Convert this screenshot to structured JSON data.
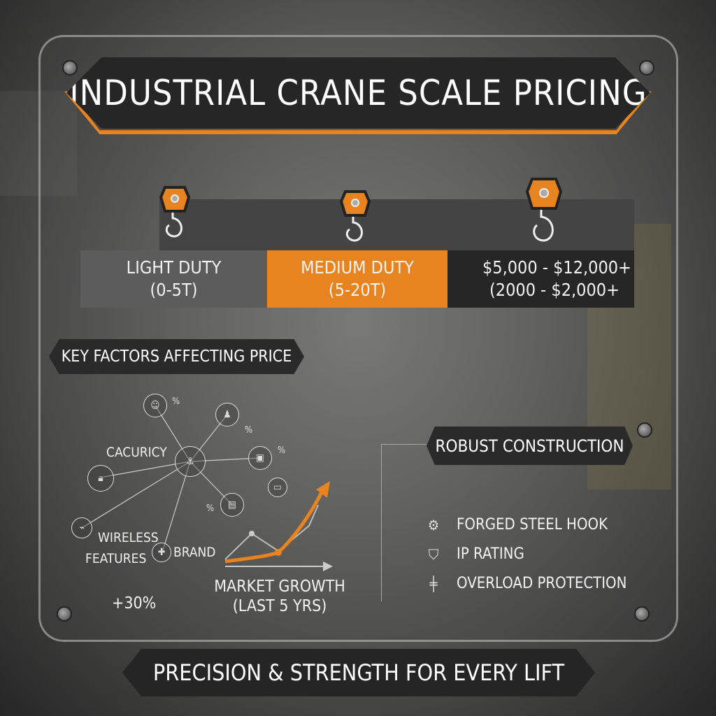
{
  "title": "INDUSTRIAL CRANE SCALE PRICING",
  "tiers": [
    {
      "line1": "LIGHT DUTY",
      "line2": "(0-5T)",
      "color": "#5c5c5c"
    },
    {
      "line1": "MEDIUM DUTY",
      "line2": "(5-20T)",
      "color": "#e8841f"
    },
    {
      "line1": "$5,000 - $12,000+",
      "line2": "(2000 - $2,000+",
      "color": "#262626"
    }
  ],
  "key_factors": {
    "heading": "KEY FACTORS AFFECTING PRICE",
    "labels": {
      "capacity": "CACURICY",
      "wireless": "WIRELESS",
      "features": "FEATURES",
      "brand": "BRAND"
    },
    "percent_sign": "%",
    "growth_value": "+30%",
    "market_growth": "MARKET GROWTH",
    "market_period": "(LAST 5 YRS)"
  },
  "construction": {
    "heading": "ROBUST CONSTRUCTION",
    "items": [
      {
        "label": "FORGED STEEL HOOK",
        "icon": "gear-icon"
      },
      {
        "label": "IP RATING",
        "icon": "shield-icon"
      },
      {
        "label": "OVERLOAD PROTECTION",
        "icon": "bolt-icon"
      }
    ]
  },
  "footer": "PRECISION & STRENGTH FOR EVERY LIFT",
  "accent": "#e8841f"
}
